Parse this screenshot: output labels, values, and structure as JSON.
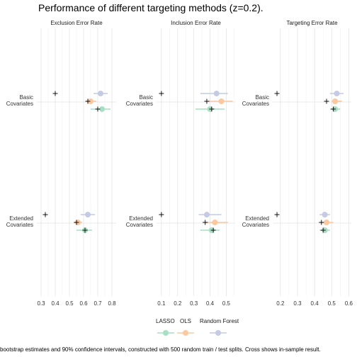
{
  "chart_data": {
    "type": "dot-interval",
    "title": "Performance of different targeting methods (z=0.2).",
    "panels": [
      {
        "name": "Exclusion Error Rate",
        "ticks": [
          0.3,
          0.4,
          0.5,
          0.6,
          0.7,
          0.8
        ],
        "xlim": [
          0.27,
          0.83
        ],
        "in_sample": {
          "Basic Covariates": [
            0.4,
            0.63,
            0.7
          ],
          "Extended Covariates": [
            0.33,
            0.55,
            0.61
          ]
        },
        "series": {
          "Random Forest": {
            "Basic Covariates": {
              "est": 0.72,
              "lo": 0.67,
              "hi": 0.77
            },
            "Extended Covariates": {
              "est": 0.63,
              "lo": 0.58,
              "hi": 0.68
            }
          },
          "OLS": {
            "Basic Covariates": {
              "est": 0.65,
              "lo": 0.62,
              "hi": 0.69
            },
            "Extended Covariates": {
              "est": 0.56,
              "lo": 0.53,
              "hi": 0.59
            }
          },
          "LASSO": {
            "Basic Covariates": {
              "est": 0.73,
              "lo": 0.65,
              "hi": 0.79
            },
            "Extended Covariates": {
              "est": 0.61,
              "lo": 0.55,
              "hi": 0.66
            }
          }
        }
      },
      {
        "name": "Inclusion Error Rate",
        "ticks": [
          0.1,
          0.2,
          0.3,
          0.4,
          0.5
        ],
        "xlim": [
          0.07,
          0.555
        ],
        "in_sample": {
          "Basic Covariates": [
            0.1,
            0.38,
            0.41
          ],
          "Extended Covariates": [
            0.1,
            0.37,
            0.42
          ]
        },
        "series": {
          "Random Forest": {
            "Basic Covariates": {
              "est": 0.44,
              "lo": 0.34,
              "hi": 0.51
            },
            "Extended Covariates": {
              "est": 0.38,
              "lo": 0.33,
              "hi": 0.47
            }
          },
          "OLS": {
            "Basic Covariates": {
              "est": 0.47,
              "lo": 0.39,
              "hi": 0.54
            },
            "Extended Covariates": {
              "est": 0.43,
              "lo": 0.37,
              "hi": 0.51
            }
          },
          "LASSO": {
            "Basic Covariates": {
              "est": 0.4,
              "lo": 0.31,
              "hi": 0.49
            },
            "Extended Covariates": {
              "est": 0.41,
              "lo": 0.34,
              "hi": 0.46
            }
          }
        }
      },
      {
        "name": "Targeting Error Rate",
        "ticks": [
          0.2,
          0.3,
          0.4,
          0.5,
          0.6
        ],
        "xlim": [
          0.155,
          0.615
        ],
        "in_sample": {
          "Basic Covariates": [
            0.18,
            0.47,
            0.51
          ],
          "Extended Covariates": [
            0.18,
            0.44,
            0.45
          ]
        },
        "series": {
          "Random Forest": {
            "Basic Covariates": {
              "est": 0.53,
              "lo": 0.49,
              "hi": 0.57
            },
            "Extended Covariates": {
              "est": 0.46,
              "lo": 0.43,
              "hi": 0.49
            }
          },
          "OLS": {
            "Basic Covariates": {
              "est": 0.52,
              "lo": 0.5,
              "hi": 0.56
            },
            "Extended Covariates": {
              "est": 0.47,
              "lo": 0.44,
              "hi": 0.51
            }
          },
          "LASSO": {
            "Basic Covariates": {
              "est": 0.52,
              "lo": 0.49,
              "hi": 0.55
            },
            "Extended Covariates": {
              "est": 0.46,
              "lo": 0.43,
              "hi": 0.49
            }
          }
        }
      }
    ],
    "categories": [
      "Basic Covariates",
      "Extended Covariates"
    ],
    "category_lines": [
      [
        "Basic",
        "Covariates"
      ],
      [
        "Extended",
        "Covariates"
      ]
    ],
    "legend": [
      "LASSO",
      "OLS",
      "Random Forest"
    ],
    "legend_position": "bottom",
    "colors": {
      "LASSO": "#a6dfc2",
      "OLS": "#fbc8a0",
      "Random Forest": "#c4cbe2"
    },
    "in_sample_marker": "cross",
    "grid": true,
    "caption": "bootstrap estimates and 90% confidence intervals, constructed with 500 random train / test splits. Cross shows in-sample result."
  }
}
